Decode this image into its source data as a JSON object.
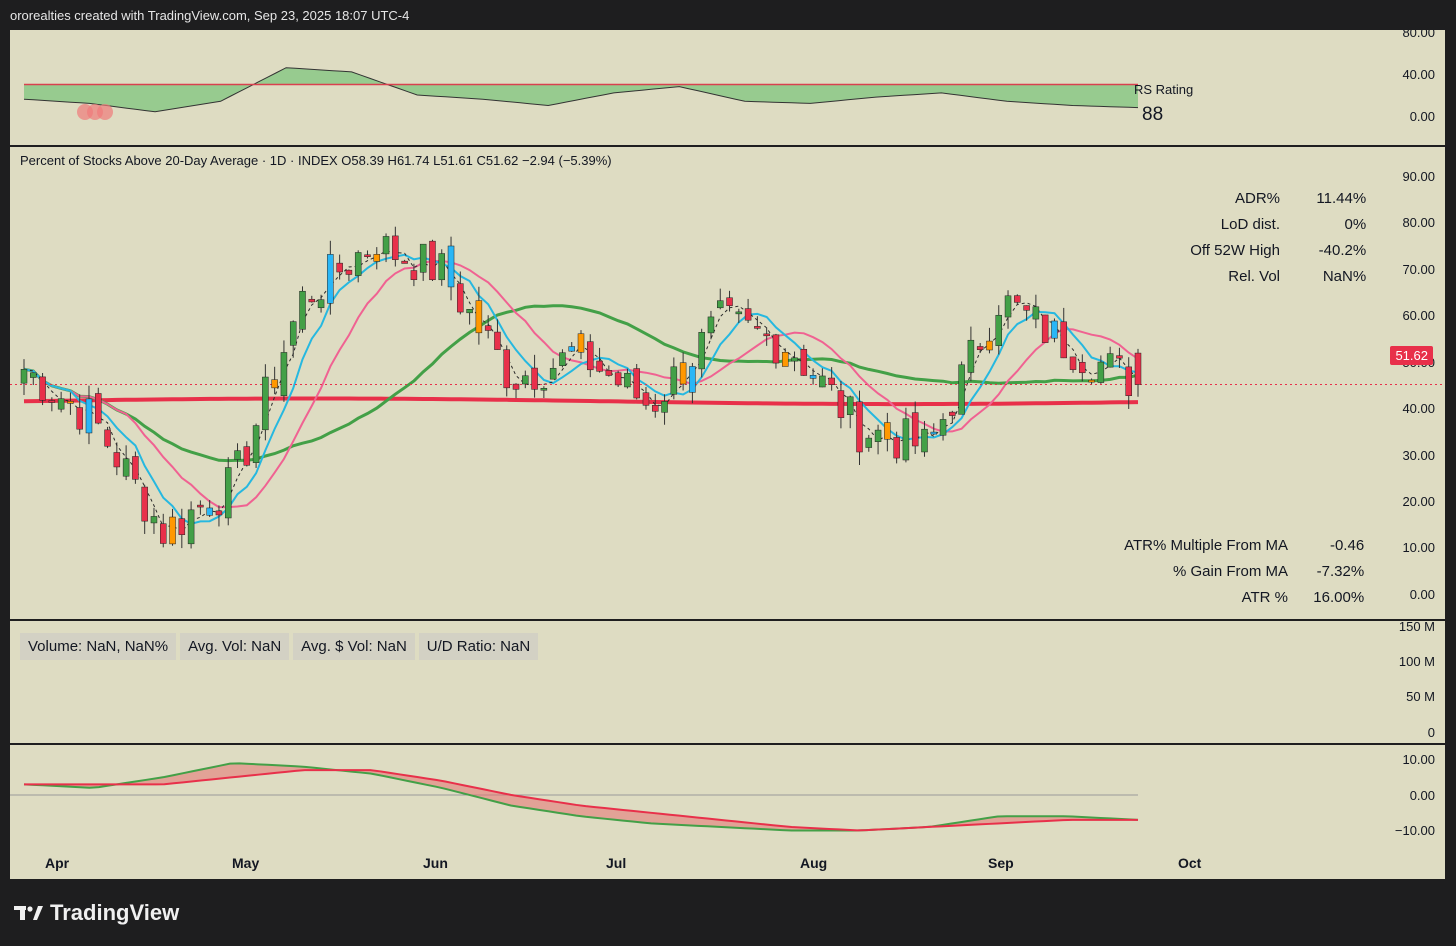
{
  "header": {
    "text": "ororealties created with TradingView.com, Sep 23, 2025 18:07 UTC-4"
  },
  "rs_pane": {
    "label": "RS Rating",
    "value": "88",
    "axis": [
      "80.00",
      "40.00",
      "0.00"
    ]
  },
  "main_pane": {
    "title": "Percent of Stocks Above 20-Day Average · 1D · INDEX  O58.39  H61.74  L51.61  C51.62  −2.94 (−5.39%)",
    "axis": [
      "90.00",
      "80.00",
      "70.00",
      "60.00",
      "50.00",
      "40.00",
      "30.00",
      "20.00",
      "10.00",
      "0.00"
    ],
    "price_tag": "51.62",
    "stats_top": [
      {
        "label": "ADR%",
        "value": "11.44%"
      },
      {
        "label": "LoD dist.",
        "value": "0%"
      },
      {
        "label": "Off 52W High",
        "value": "-40.2%"
      },
      {
        "label": "Rel. Vol",
        "value": "NaN%"
      }
    ],
    "stats_bottom": [
      {
        "label": "ATR% Multiple From MA",
        "value": "-0.46"
      },
      {
        "label": "% Gain From MA",
        "value": "-7.32%"
      },
      {
        "label": "ATR %",
        "value": "16.00%"
      }
    ]
  },
  "volume_pane": {
    "badges": [
      "Volume: NaN, NaN%",
      "Avg. Vol: NaN",
      "Avg. $ Vol: NaN",
      "U/D Ratio: NaN"
    ],
    "axis": [
      "150 M",
      "100 M",
      "50 M",
      "0"
    ]
  },
  "osc_pane": {
    "axis": [
      "10.00",
      "0.00",
      "−10.00"
    ]
  },
  "time_axis": [
    "Apr",
    "May",
    "Jun",
    "Jul",
    "Aug",
    "Sep",
    "Oct"
  ],
  "brand": {
    "name": "TradingView"
  },
  "colors": {
    "background": "#dedcc2",
    "up_candle": "#43a047",
    "down_candle": "#e8304a",
    "cyan_candle": "#29b6f6",
    "orange_candle": "#ff9800",
    "ma_red": "#e8304a",
    "ma_green": "#43a047",
    "ma_cyan": "#26b8e0",
    "ma_pink": "#f06292"
  },
  "chart_data": {
    "type": "line",
    "title": "Percent of Stocks Above 20-Day Average · 1D · INDEX",
    "ylim": [
      0,
      95
    ],
    "x": [
      "Apr",
      "Apr",
      "Apr",
      "Apr",
      "May",
      "May",
      "May",
      "Jun",
      "Jun",
      "Jul",
      "Jul",
      "Aug",
      "Aug",
      "Aug",
      "Sep",
      "Sep",
      "Sep"
    ],
    "series": [
      {
        "name": "",
        "values": [
          55,
          44,
          20,
          30,
          70,
          82,
          76,
          53,
          58,
          47,
          65,
          60,
          42,
          38,
          70,
          60,
          51.62
        ]
      }
    ],
    "last": {
      "open": 58.39,
      "high": 61.74,
      "low": 51.61,
      "close": 51.62,
      "change": -2.94,
      "change_pct": -5.39
    }
  }
}
